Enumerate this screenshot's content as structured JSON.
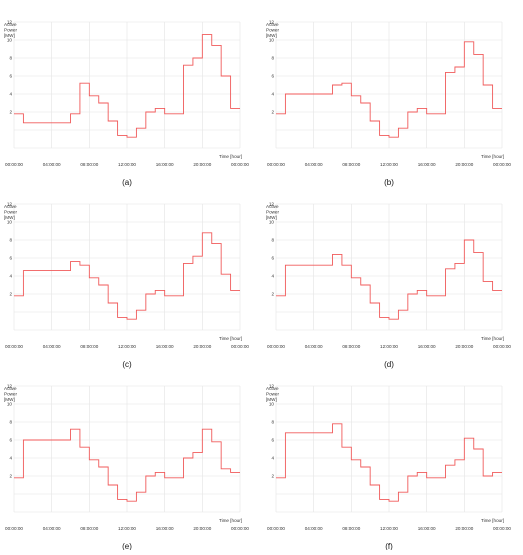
{
  "figure": {
    "panels": [
      {
        "id": "a",
        "label": "(a)"
      },
      {
        "id": "b",
        "label": "(b)"
      },
      {
        "id": "c",
        "label": "(c)"
      },
      {
        "id": "d",
        "label": "(d)"
      },
      {
        "id": "e",
        "label": "(e)"
      },
      {
        "id": "f",
        "label": "(f)"
      }
    ]
  },
  "chart_data": [
    {
      "panel": "(a)",
      "type": "line",
      "step": true,
      "ylabel": "Active Power [MW]",
      "xlabel": "Time [hour]",
      "ylim": [
        -2,
        12
      ],
      "xlim": [
        0,
        24
      ],
      "yticks": [
        "2",
        "4",
        "6",
        "8",
        "10",
        "12"
      ],
      "xticks": [
        "00:00:00",
        "04:00:00",
        "08:00:00",
        "12:00:00",
        "16:00:00",
        "20:00:00",
        "00:00:00"
      ],
      "grid": true,
      "line_color": "#f05a5a",
      "x": [
        0,
        1,
        2,
        3,
        4,
        5,
        6,
        7,
        8,
        9,
        10,
        11,
        12,
        13,
        14,
        15,
        16,
        17,
        18,
        19,
        20,
        21,
        22,
        23,
        24
      ],
      "values": [
        1.8,
        0.8,
        0.8,
        0.8,
        0.8,
        0.8,
        1.8,
        5.2,
        3.8,
        3.0,
        1.0,
        -0.6,
        -0.8,
        0.2,
        2.0,
        2.4,
        1.8,
        1.8,
        7.2,
        8.0,
        10.6,
        9.4,
        6.0,
        2.4,
        2.4
      ]
    },
    {
      "panel": "(b)",
      "type": "line",
      "step": true,
      "ylabel": "Active Power [MW]",
      "xlabel": "Time [hour]",
      "ylim": [
        -2,
        12
      ],
      "xlim": [
        0,
        24
      ],
      "yticks": [
        "2",
        "4",
        "6",
        "8",
        "10",
        "12"
      ],
      "xticks": [
        "00:00:00",
        "04:00:00",
        "08:00:00",
        "12:00:00",
        "16:00:00",
        "20:00:00",
        "00:00:00"
      ],
      "grid": true,
      "line_color": "#f05a5a",
      "x": [
        0,
        1,
        2,
        3,
        4,
        5,
        6,
        7,
        8,
        9,
        10,
        11,
        12,
        13,
        14,
        15,
        16,
        17,
        18,
        19,
        20,
        21,
        22,
        23,
        24
      ],
      "values": [
        1.8,
        4.0,
        4.0,
        4.0,
        4.0,
        4.0,
        5.0,
        5.2,
        3.8,
        3.0,
        1.0,
        -0.6,
        -0.8,
        0.2,
        2.0,
        2.4,
        1.8,
        1.8,
        6.4,
        7.0,
        9.8,
        8.4,
        5.0,
        2.4,
        2.4
      ]
    },
    {
      "panel": "(c)",
      "type": "line",
      "step": true,
      "ylabel": "Active Power [MW]",
      "xlabel": "Time [hour]",
      "ylim": [
        -2,
        12
      ],
      "xlim": [
        0,
        24
      ],
      "yticks": [
        "2",
        "4",
        "6",
        "8",
        "10",
        "12"
      ],
      "xticks": [
        "00:00:00",
        "04:00:00",
        "08:00:00",
        "12:00:00",
        "16:00:00",
        "20:00:00",
        "00:00:00"
      ],
      "grid": true,
      "line_color": "#f05a5a",
      "x": [
        0,
        1,
        2,
        3,
        4,
        5,
        6,
        7,
        8,
        9,
        10,
        11,
        12,
        13,
        14,
        15,
        16,
        17,
        18,
        19,
        20,
        21,
        22,
        23,
        24
      ],
      "values": [
        1.8,
        4.6,
        4.6,
        4.6,
        4.6,
        4.6,
        5.6,
        5.2,
        3.8,
        3.0,
        1.0,
        -0.6,
        -0.8,
        0.2,
        2.0,
        2.4,
        1.8,
        1.8,
        5.4,
        6.2,
        8.8,
        7.6,
        4.2,
        2.4,
        2.4
      ]
    },
    {
      "panel": "(d)",
      "type": "line",
      "step": true,
      "ylabel": "Active Power [MW]",
      "xlabel": "Time [hour]",
      "ylim": [
        -2,
        12
      ],
      "xlim": [
        0,
        24
      ],
      "yticks": [
        "2",
        "4",
        "6",
        "8",
        "10",
        "12"
      ],
      "xticks": [
        "00:00:00",
        "04:00:00",
        "08:00:00",
        "12:00:00",
        "16:00:00",
        "20:00:00",
        "00:00:00"
      ],
      "grid": true,
      "line_color": "#f05a5a",
      "x": [
        0,
        1,
        2,
        3,
        4,
        5,
        6,
        7,
        8,
        9,
        10,
        11,
        12,
        13,
        14,
        15,
        16,
        17,
        18,
        19,
        20,
        21,
        22,
        23,
        24
      ],
      "values": [
        1.8,
        5.2,
        5.2,
        5.2,
        5.2,
        5.2,
        6.4,
        5.2,
        3.8,
        3.0,
        1.0,
        -0.6,
        -0.8,
        0.2,
        2.0,
        2.4,
        1.8,
        1.8,
        4.8,
        5.4,
        8.0,
        6.6,
        3.4,
        2.4,
        2.4
      ]
    },
    {
      "panel": "(e)",
      "type": "line",
      "step": true,
      "ylabel": "Active Power [MW]",
      "xlabel": "Time [hour]",
      "ylim": [
        -2,
        12
      ],
      "xlim": [
        0,
        24
      ],
      "yticks": [
        "2",
        "4",
        "6",
        "8",
        "10",
        "12"
      ],
      "xticks": [
        "00:00:00",
        "04:00:00",
        "08:00:00",
        "12:00:00",
        "16:00:00",
        "20:00:00",
        "00:00:00"
      ],
      "grid": true,
      "line_color": "#f05a5a",
      "x": [
        0,
        1,
        2,
        3,
        4,
        5,
        6,
        7,
        8,
        9,
        10,
        11,
        12,
        13,
        14,
        15,
        16,
        17,
        18,
        19,
        20,
        21,
        22,
        23,
        24
      ],
      "values": [
        1.8,
        6.0,
        6.0,
        6.0,
        6.0,
        6.0,
        7.2,
        5.2,
        3.8,
        3.0,
        1.0,
        -0.6,
        -0.8,
        0.2,
        2.0,
        2.4,
        1.8,
        1.8,
        4.0,
        4.6,
        7.2,
        5.8,
        2.8,
        2.4,
        2.4
      ]
    },
    {
      "panel": "(f)",
      "type": "line",
      "step": true,
      "ylabel": "Active Power [MW]",
      "xlabel": "Time [hour]",
      "ylim": [
        -2,
        12
      ],
      "xlim": [
        0,
        24
      ],
      "yticks": [
        "2",
        "4",
        "6",
        "8",
        "10",
        "12"
      ],
      "xticks": [
        "00:00:00",
        "04:00:00",
        "08:00:00",
        "12:00:00",
        "16:00:00",
        "20:00:00",
        "00:00:00"
      ],
      "grid": true,
      "line_color": "#f05a5a",
      "x": [
        0,
        1,
        2,
        3,
        4,
        5,
        6,
        7,
        8,
        9,
        10,
        11,
        12,
        13,
        14,
        15,
        16,
        17,
        18,
        19,
        20,
        21,
        22,
        23,
        24
      ],
      "values": [
        1.8,
        6.8,
        6.8,
        6.8,
        6.8,
        6.8,
        7.8,
        5.2,
        3.8,
        3.0,
        1.0,
        -0.6,
        -0.8,
        0.2,
        2.0,
        2.4,
        1.8,
        1.8,
        3.2,
        3.8,
        6.2,
        5.0,
        2.0,
        2.4,
        2.4
      ]
    }
  ]
}
